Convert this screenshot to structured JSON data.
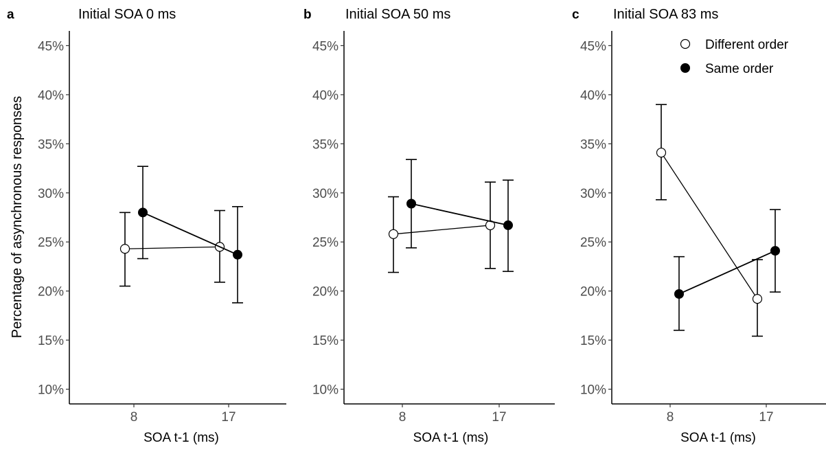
{
  "figure": {
    "ylabel": "Percentage of asynchronous responses"
  },
  "legend": {
    "placement": "top-right (panel c)",
    "items": [
      {
        "label": "Different order",
        "marker": "open-circle"
      },
      {
        "label": "Same order",
        "marker": "filled-circle"
      }
    ]
  },
  "colors": {
    "line": "#000000",
    "open_marker_fill": "#ffffff",
    "filled_marker_fill": "#000000",
    "tick_text": "#4d4d4d"
  },
  "chart_data": [
    {
      "type": "line",
      "panel": "a",
      "title": "Initial SOA 0 ms",
      "xlabel": "SOA t-1 (ms)",
      "ylabel": "Percentage of asynchronous responses",
      "categories": [
        "8",
        "17"
      ],
      "ylim": [
        0.085,
        0.465
      ],
      "yticks": [
        0.1,
        0.15,
        0.2,
        0.25,
        0.3,
        0.35,
        0.4,
        0.45
      ],
      "ytick_labels": [
        "10%",
        "15%",
        "20%",
        "25%",
        "30%",
        "35%",
        "40%",
        "45%"
      ],
      "grid": false,
      "series": [
        {
          "name": "Different order",
          "values": [
            0.243,
            0.245
          ],
          "lower": [
            0.205,
            0.209
          ],
          "upper": [
            0.28,
            0.282
          ]
        },
        {
          "name": "Same order",
          "values": [
            0.28,
            0.237
          ],
          "lower": [
            0.233,
            0.188
          ],
          "upper": [
            0.327,
            0.286
          ]
        }
      ]
    },
    {
      "type": "line",
      "panel": "b",
      "title": "Initial SOA 50 ms",
      "xlabel": "SOA t-1 (ms)",
      "ylabel": "",
      "categories": [
        "8",
        "17"
      ],
      "ylim": [
        0.085,
        0.465
      ],
      "yticks": [
        0.1,
        0.15,
        0.2,
        0.25,
        0.3,
        0.35,
        0.4,
        0.45
      ],
      "ytick_labels": [
        "10%",
        "15%",
        "20%",
        "25%",
        "30%",
        "35%",
        "40%",
        "45%"
      ],
      "grid": false,
      "series": [
        {
          "name": "Different order",
          "values": [
            0.258,
            0.267
          ],
          "lower": [
            0.219,
            0.223
          ],
          "upper": [
            0.296,
            0.311
          ]
        },
        {
          "name": "Same order",
          "values": [
            0.289,
            0.267
          ],
          "lower": [
            0.244,
            0.22
          ],
          "upper": [
            0.334,
            0.313
          ]
        }
      ]
    },
    {
      "type": "line",
      "panel": "c",
      "title": "Initial SOA 83 ms",
      "xlabel": "SOA t-1 (ms)",
      "ylabel": "",
      "categories": [
        "8",
        "17"
      ],
      "ylim": [
        0.085,
        0.465
      ],
      "yticks": [
        0.1,
        0.15,
        0.2,
        0.25,
        0.3,
        0.35,
        0.4,
        0.45
      ],
      "ytick_labels": [
        "10%",
        "15%",
        "20%",
        "25%",
        "30%",
        "35%",
        "40%",
        "45%"
      ],
      "grid": false,
      "series": [
        {
          "name": "Different order",
          "values": [
            0.341,
            0.192
          ],
          "lower": [
            0.293,
            0.154
          ],
          "upper": [
            0.39,
            0.232
          ]
        },
        {
          "name": "Same order",
          "values": [
            0.197,
            0.241
          ],
          "lower": [
            0.16,
            0.199
          ],
          "upper": [
            0.235,
            0.283
          ]
        }
      ]
    }
  ]
}
